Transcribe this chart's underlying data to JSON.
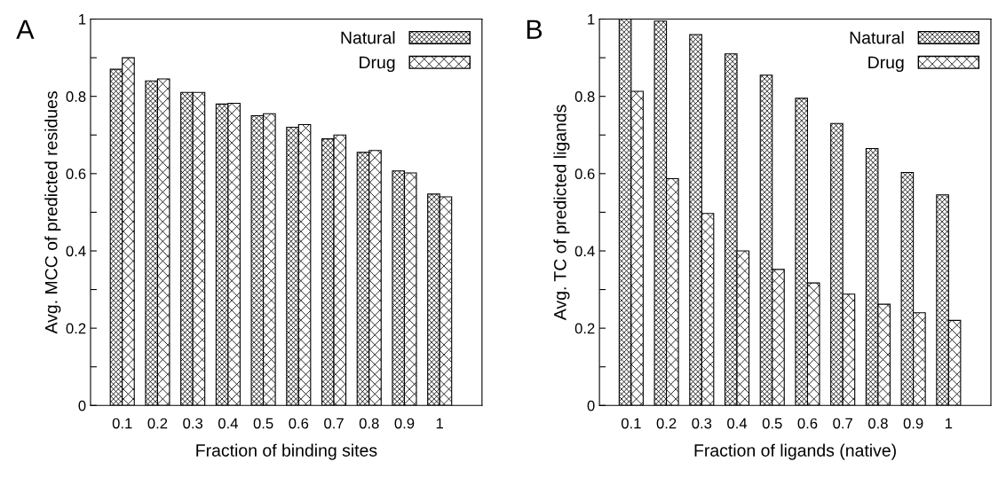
{
  "chart_data": [
    {
      "type": "bar",
      "annotations": [
        "A"
      ],
      "xlabel": "Fraction of binding sites",
      "ylabel": "Avg. MCC of predicted residues",
      "categories": [
        "0.1",
        "0.2",
        "0.3",
        "0.4",
        "0.5",
        "0.6",
        "0.7",
        "0.8",
        "0.9",
        "1"
      ],
      "series": [
        {
          "name": "Natural",
          "color": "#000000",
          "values": [
            0.87,
            0.84,
            0.81,
            0.78,
            0.75,
            0.72,
            0.69,
            0.655,
            0.607,
            0.547
          ]
        },
        {
          "name": "Drug",
          "color": "#000000",
          "values": [
            0.9,
            0.845,
            0.81,
            0.782,
            0.755,
            0.727,
            0.7,
            0.66,
            0.602,
            0.54
          ]
        }
      ],
      "ylim": [
        0,
        1
      ],
      "yticks": [
        0,
        {
          "value": 0.1,
          "label": null
        },
        0.2,
        {
          "value": 0.3,
          "label": null
        },
        0.4,
        {
          "value": 0.5,
          "label": null
        },
        0.6,
        {
          "value": 0.7,
          "label": null
        },
        0.8,
        {
          "value": 0.9,
          "label": null
        },
        1
      ],
      "legend": "top right",
      "grid": false
    },
    {
      "type": "bar",
      "annotations": [
        "B"
      ],
      "xlabel": "Fraction of ligands (native)",
      "ylabel": "Avg. TC of predicted ligands",
      "categories": [
        "0.1",
        "0.2",
        "0.3",
        "0.4",
        "0.5",
        "0.6",
        "0.7",
        "0.8",
        "0.9",
        "1"
      ],
      "series": [
        {
          "name": "Natural",
          "color": "#000000",
          "values": [
            1.0,
            0.995,
            0.96,
            0.91,
            0.855,
            0.795,
            0.73,
            0.665,
            0.603,
            0.545
          ]
        },
        {
          "name": "Drug",
          "color": "#000000",
          "values": [
            0.813,
            0.587,
            0.497,
            0.4,
            0.352,
            0.317,
            0.288,
            0.262,
            0.24,
            0.22
          ]
        }
      ],
      "ylim": [
        0,
        1
      ],
      "yticks": [
        0,
        {
          "value": 0.1,
          "label": null
        },
        0.2,
        {
          "value": 0.3,
          "label": null
        },
        0.4,
        {
          "value": 0.5,
          "label": null
        },
        0.6,
        {
          "value": 0.7,
          "label": null
        },
        0.8,
        {
          "value": 0.9,
          "label": null
        },
        1
      ],
      "legend": "top right",
      "grid": false
    }
  ]
}
